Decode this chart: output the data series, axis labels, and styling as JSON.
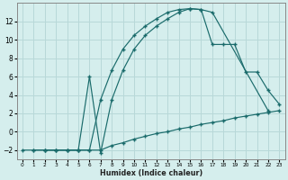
{
  "xlabel": "Humidex (Indice chaleur)",
  "bg_color": "#d5eeed",
  "grid_color": "#b8d8d8",
  "line_color": "#1a6b6b",
  "line1_x": [
    1,
    2,
    3,
    4,
    5,
    6,
    7,
    8,
    9,
    10,
    11,
    12,
    13,
    14,
    15,
    16,
    17,
    22
  ],
  "line1_y": [
    -2,
    -2,
    -2,
    -2,
    -2,
    -2,
    3.5,
    6.7,
    9.0,
    10.5,
    11.5,
    12.3,
    13.0,
    13.3,
    13.4,
    13.3,
    13.0,
    2.3
  ],
  "line2_x": [
    2,
    3,
    4,
    5,
    6,
    7,
    8,
    9,
    10,
    11,
    12,
    13,
    14,
    15,
    16,
    17,
    18,
    19,
    20,
    21,
    22,
    23
  ],
  "line2_y": [
    -2,
    -2,
    -2,
    -2,
    6.0,
    -2.3,
    3.5,
    6.7,
    9.0,
    10.5,
    11.5,
    12.3,
    13.0,
    13.4,
    13.3,
    9.5,
    9.5,
    9.5,
    6.5,
    6.5,
    4.5,
    3.0
  ],
  "line3_x": [
    0,
    1,
    2,
    3,
    4,
    5,
    6,
    7,
    8,
    9,
    10,
    11,
    12,
    13,
    14,
    15,
    16,
    17,
    18,
    19,
    20,
    21,
    22,
    23
  ],
  "line3_y": [
    -2,
    -2,
    -2,
    -2,
    -2,
    -2,
    -2,
    -2,
    -1.5,
    -1.2,
    -0.8,
    -0.5,
    -0.2,
    0.0,
    0.3,
    0.5,
    0.8,
    1.0,
    1.2,
    1.5,
    1.7,
    1.9,
    2.1,
    2.3
  ],
  "xlim": [
    -0.5,
    23.5
  ],
  "ylim": [
    -3.0,
    14.0
  ],
  "xticks": [
    0,
    1,
    2,
    3,
    4,
    5,
    6,
    7,
    8,
    9,
    10,
    11,
    12,
    13,
    14,
    15,
    16,
    17,
    18,
    19,
    20,
    21,
    22,
    23
  ],
  "yticks": [
    -2,
    0,
    2,
    4,
    6,
    8,
    10,
    12
  ]
}
